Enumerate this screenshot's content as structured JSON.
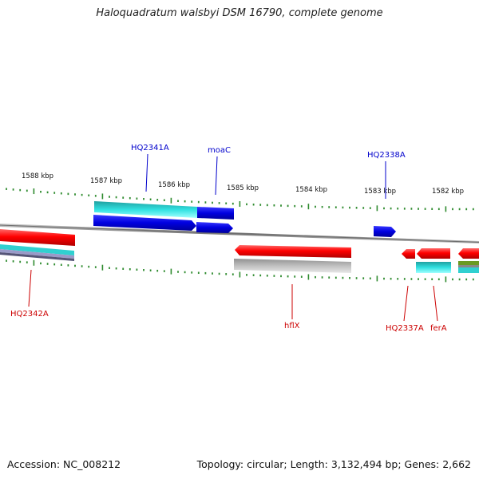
{
  "title": "Haloquadratum walsbyi DSM 16790, complete genome",
  "footer": {
    "accession": "Accession: NC_008212",
    "summary": "Topology: circular; Length: 3,132,494 bp; Genes: 2,662"
  },
  "ticks": {
    "labels": [
      "1588 kbp",
      "1587 kbp",
      "1586 kbp",
      "1585 kbp",
      "1584 kbp",
      "1583 kbp",
      "1582 kbp"
    ]
  },
  "genes": [
    {
      "name": "HQ2341A",
      "strand": "forward",
      "color": "#0000cc"
    },
    {
      "name": "moaC",
      "strand": "forward",
      "color": "#0000cc"
    },
    {
      "name": "HQ2338A",
      "strand": "forward",
      "color": "#0000cc"
    },
    {
      "name": "HQ2342A",
      "strand": "reverse",
      "color": "#cc0000"
    },
    {
      "name": "hflX",
      "strand": "reverse",
      "color": "#cc0000"
    },
    {
      "name": "HQ2337A",
      "strand": "reverse",
      "color": "#cc0000"
    },
    {
      "name": "ferA",
      "strand": "reverse",
      "color": "#cc0000"
    }
  ],
  "colors": {
    "forward_cds": "#0000ee",
    "reverse_cds": "#ff0000",
    "forward_feature": "#00c8c8",
    "reverse_feature": "#b4b4b4",
    "backbone": "#888888",
    "tick": "#2e8b2e"
  }
}
